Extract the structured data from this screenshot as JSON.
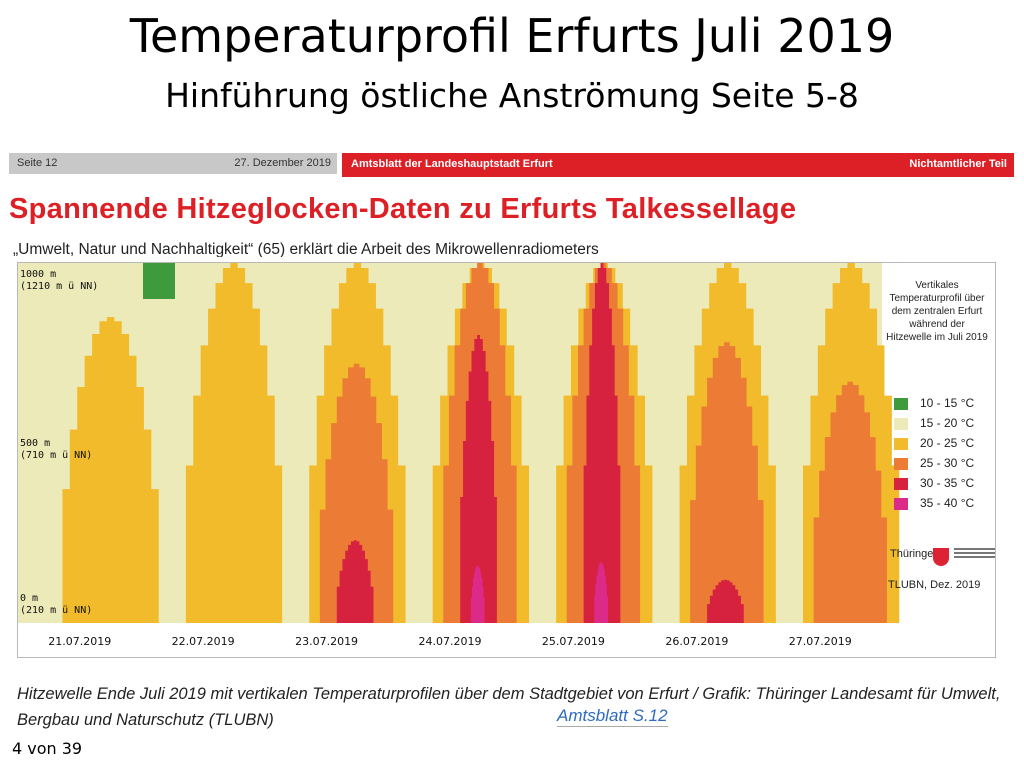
{
  "slide": {
    "title": "Temperaturprofil Erfurts Juli 2019",
    "subtitle": "Hinführung östliche Anströmung Seite 5-8",
    "page_number": "4 von 39"
  },
  "newspaper": {
    "page": "Seite 12",
    "date": "27. Dezember 2019",
    "paper_name": "Amtsblatt der Landeshauptstadt Erfurt",
    "section": "Nichtamtlicher Teil",
    "article_title": "Spannende Hitzeglocken-Daten zu Erfurts Talkessellage",
    "article_subtitle": "„Umwelt, Natur und Nachhaltigkeit“ (65) erklärt die Arbeit des Mikrowellenradiometers"
  },
  "figure": {
    "altitude_labels": [
      {
        "line1": "1000 m",
        "line2": "(1210 m ü NN)"
      },
      {
        "line1": "500 m",
        "line2": "(710 m ü NN)"
      },
      {
        "line1": "0 m",
        "line2": "(210 m ü NN)"
      }
    ],
    "legend_title": "Vertikales Temperaturprofil über dem zentralen Erfurt während der Hitzewelle im Juli 2019",
    "legend": [
      {
        "label": "10 - 15 °C",
        "color": "#3d9a3d"
      },
      {
        "label": "15 - 20 °C",
        "color": "#ebeab8"
      },
      {
        "label": "20 - 25 °C",
        "color": "#f1bb2c"
      },
      {
        "label": "25 - 30 °C",
        "color": "#ec7b35"
      },
      {
        "label": "30 - 35 °C",
        "color": "#d6213f"
      },
      {
        "label": "35 - 40 °C",
        "color": "#db2a88"
      }
    ],
    "logo_text": "Thüringen",
    "credit": "TLUBN, Dez. 2019"
  },
  "chart_data": {
    "type": "heatmap",
    "title": "Vertikales Temperaturprofil über dem zentralen Erfurt während der Hitzewelle im Juli 2019",
    "x_categories": [
      "21.07.2019",
      "22.07.2019",
      "23.07.2019",
      "24.07.2019",
      "25.07.2019",
      "26.07.2019",
      "27.07.2019"
    ],
    "y_range_m": [
      0,
      1000
    ],
    "y_ticks": [
      "0 m (210 m ü NN)",
      "500 m (710 m ü NN)",
      "1000 m (1210 m ü NN)"
    ],
    "color_bins_celsius": [
      [
        10,
        15
      ],
      [
        15,
        20
      ],
      [
        20,
        25
      ],
      [
        25,
        30
      ],
      [
        30,
        35
      ],
      [
        35,
        40
      ]
    ],
    "daily_peak_height_m": {
      "20-25": [
        850,
        1000,
        1000,
        1000,
        1000,
        1000,
        1000
      ],
      "25-30": [
        0,
        0,
        720,
        1000,
        1000,
        780,
        670
      ],
      "30-35": [
        0,
        0,
        230,
        800,
        1000,
        120,
        0
      ],
      "35-40": [
        0,
        0,
        0,
        160,
        170,
        0,
        0
      ]
    }
  },
  "caption": "Hitzewelle Ende Juli 2019 mit vertikalen Temperaturprofilen über dem Stadtgebiet von Erfurt / Grafik: Thüringer Landesamt für Umwelt, Bergbau und Naturschutz (TLUBN)",
  "reference": "Amtsblatt S.12"
}
